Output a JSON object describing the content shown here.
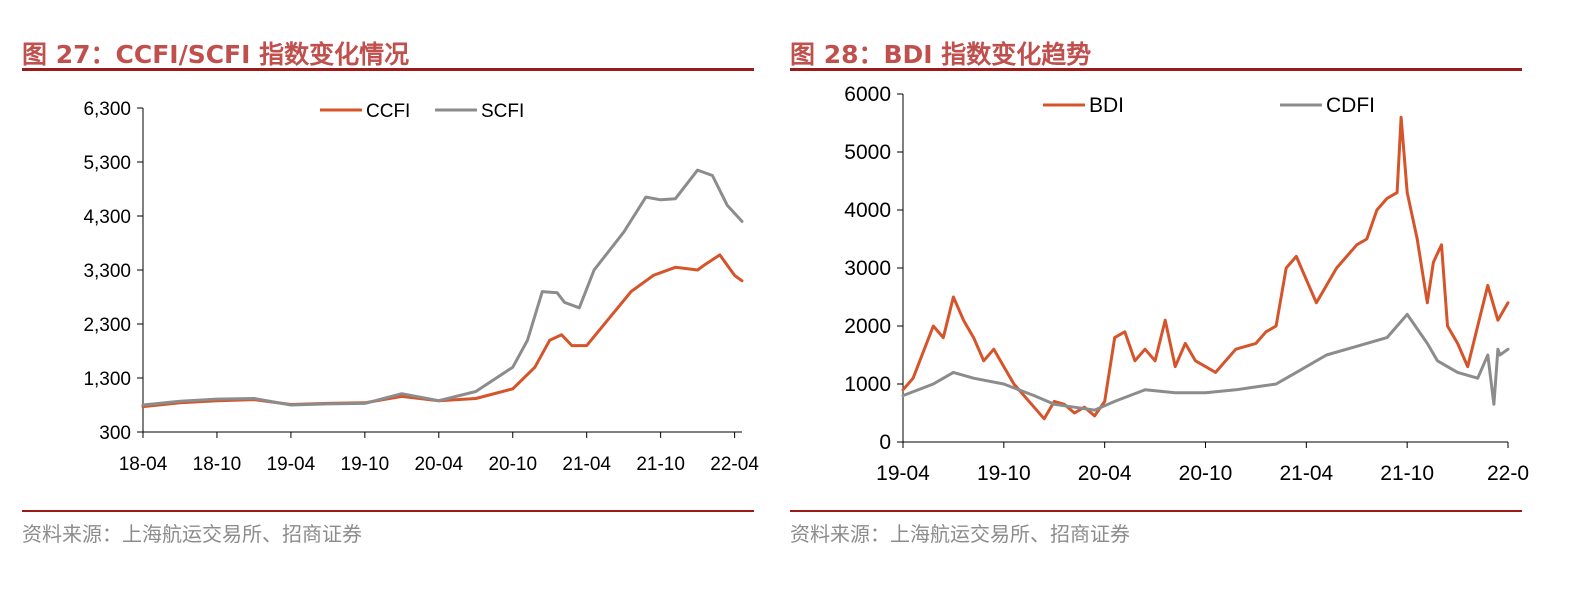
{
  "left": {
    "figure_title": "图 27：CCFI/SCFI 指数变化情况",
    "source": "资料来源：上海航运交易所、招商证券"
  },
  "right": {
    "figure_title": "图 28：BDI 指数变化趋势",
    "source": "资料来源：上海航运交易所、招商证券"
  },
  "colors": {
    "title": "#c0504d",
    "rule": "#9b1b1b",
    "orange": "#d5542a",
    "gray": "#8c8c8c"
  },
  "chart_data": [
    {
      "type": "line",
      "ylim": [
        300,
        6300
      ],
      "yticks": [
        300,
        1300,
        2300,
        3300,
        4300,
        5300,
        6300
      ],
      "ytick_labels": [
        "300",
        "1,300",
        "2,300",
        "3,300",
        "4,300",
        "5,300",
        "6,300"
      ],
      "xlim": [
        2018.25,
        2022.3
      ],
      "xticks": [
        2018.25,
        2018.75,
        2019.25,
        2019.75,
        2020.25,
        2020.75,
        2021.25,
        2021.75,
        2022.25
      ],
      "xtick_labels": [
        "18-04",
        "18-10",
        "19-04",
        "19-10",
        "20-04",
        "20-10",
        "21-04",
        "21-10",
        "22-04"
      ],
      "legend": "top-center",
      "series": [
        {
          "name": "CCFI",
          "color": "#d5542a",
          "x": [
            2018.25,
            2018.5,
            2018.75,
            2019.0,
            2019.25,
            2019.5,
            2019.75,
            2020.0,
            2020.25,
            2020.5,
            2020.75,
            2020.9,
            2021.0,
            2021.08,
            2021.15,
            2021.25,
            2021.4,
            2021.55,
            2021.7,
            2021.85,
            2022.0,
            2022.05,
            2022.15,
            2022.25,
            2022.3
          ],
          "values": [
            770,
            840,
            880,
            900,
            810,
            830,
            840,
            960,
            880,
            920,
            1100,
            1500,
            2000,
            2100,
            1900,
            1900,
            2400,
            2900,
            3200,
            3350,
            3300,
            3400,
            3580,
            3200,
            3100
          ]
        },
        {
          "name": "SCFI",
          "color": "#8c8c8c",
          "x": [
            2018.25,
            2018.5,
            2018.75,
            2019.0,
            2019.25,
            2019.5,
            2019.75,
            2020.0,
            2020.25,
            2020.5,
            2020.75,
            2020.85,
            2020.95,
            2021.05,
            2021.1,
            2021.2,
            2021.3,
            2021.5,
            2021.65,
            2021.75,
            2021.85,
            2022.0,
            2022.1,
            2022.2,
            2022.3
          ],
          "values": [
            800,
            870,
            910,
            920,
            800,
            820,
            830,
            1010,
            880,
            1050,
            1500,
            2000,
            2900,
            2880,
            2700,
            2600,
            3300,
            4000,
            4650,
            4600,
            4620,
            5150,
            5050,
            4500,
            4200
          ]
        }
      ]
    },
    {
      "type": "line",
      "ylim": [
        0,
        6000
      ],
      "yticks": [
        0,
        1000,
        2000,
        3000,
        4000,
        5000,
        6000
      ],
      "ytick_labels": [
        "0",
        "1000",
        "2000",
        "3000",
        "4000",
        "5000",
        "6000"
      ],
      "xlim": [
        2019.25,
        2022.25
      ],
      "xticks": [
        2019.25,
        2019.75,
        2020.25,
        2020.75,
        2021.25,
        2021.75,
        2022.25
      ],
      "xtick_labels": [
        "19-04",
        "19-10",
        "20-04",
        "20-10",
        "21-04",
        "21-10",
        "22-0"
      ],
      "legend": "top-center",
      "series": [
        {
          "name": "BDI",
          "color": "#d5542a",
          "x": [
            2019.25,
            2019.3,
            2019.4,
            2019.45,
            2019.5,
            2019.55,
            2019.6,
            2019.65,
            2019.7,
            2019.75,
            2019.8,
            2019.9,
            2019.95,
            2020.0,
            2020.05,
            2020.1,
            2020.15,
            2020.2,
            2020.25,
            2020.3,
            2020.35,
            2020.4,
            2020.45,
            2020.5,
            2020.55,
            2020.6,
            2020.65,
            2020.7,
            2020.75,
            2020.8,
            2020.9,
            2021.0,
            2021.05,
            2021.1,
            2021.15,
            2021.2,
            2021.25,
            2021.3,
            2021.4,
            2021.5,
            2021.55,
            2021.6,
            2021.65,
            2021.7,
            2021.72,
            2021.75,
            2021.8,
            2021.85,
            2021.88,
            2021.92,
            2021.95,
            2022.0,
            2022.05,
            2022.1,
            2022.15,
            2022.2,
            2022.25
          ],
          "values": [
            900,
            1100,
            2000,
            1800,
            2500,
            2100,
            1800,
            1400,
            1600,
            1300,
            1000,
            600,
            400,
            700,
            650,
            500,
            600,
            450,
            700,
            1800,
            1900,
            1400,
            1600,
            1400,
            2100,
            1300,
            1700,
            1400,
            1300,
            1200,
            1600,
            1700,
            1900,
            2000,
            3000,
            3200,
            2800,
            2400,
            3000,
            3400,
            3500,
            4000,
            4200,
            4300,
            5600,
            4300,
            3500,
            2400,
            3100,
            3400,
            2000,
            1700,
            1300,
            2000,
            2700,
            2100,
            2400
          ]
        },
        {
          "name": "CDFI",
          "color": "#8c8c8c",
          "x": [
            2019.25,
            2019.4,
            2019.5,
            2019.6,
            2019.75,
            2019.9,
            2020.0,
            2020.1,
            2020.2,
            2020.3,
            2020.45,
            2020.6,
            2020.75,
            2020.9,
            2021.0,
            2021.1,
            2021.2,
            2021.35,
            2021.5,
            2021.65,
            2021.75,
            2021.85,
            2021.9,
            2022.0,
            2022.1,
            2022.15,
            2022.18,
            2022.2,
            2022.21,
            2022.25
          ],
          "values": [
            800,
            1000,
            1200,
            1100,
            1000,
            800,
            650,
            600,
            550,
            700,
            900,
            850,
            850,
            900,
            950,
            1000,
            1200,
            1500,
            1650,
            1800,
            2200,
            1700,
            1400,
            1200,
            1100,
            1500,
            650,
            1600,
            1500,
            1600
          ]
        }
      ]
    }
  ]
}
